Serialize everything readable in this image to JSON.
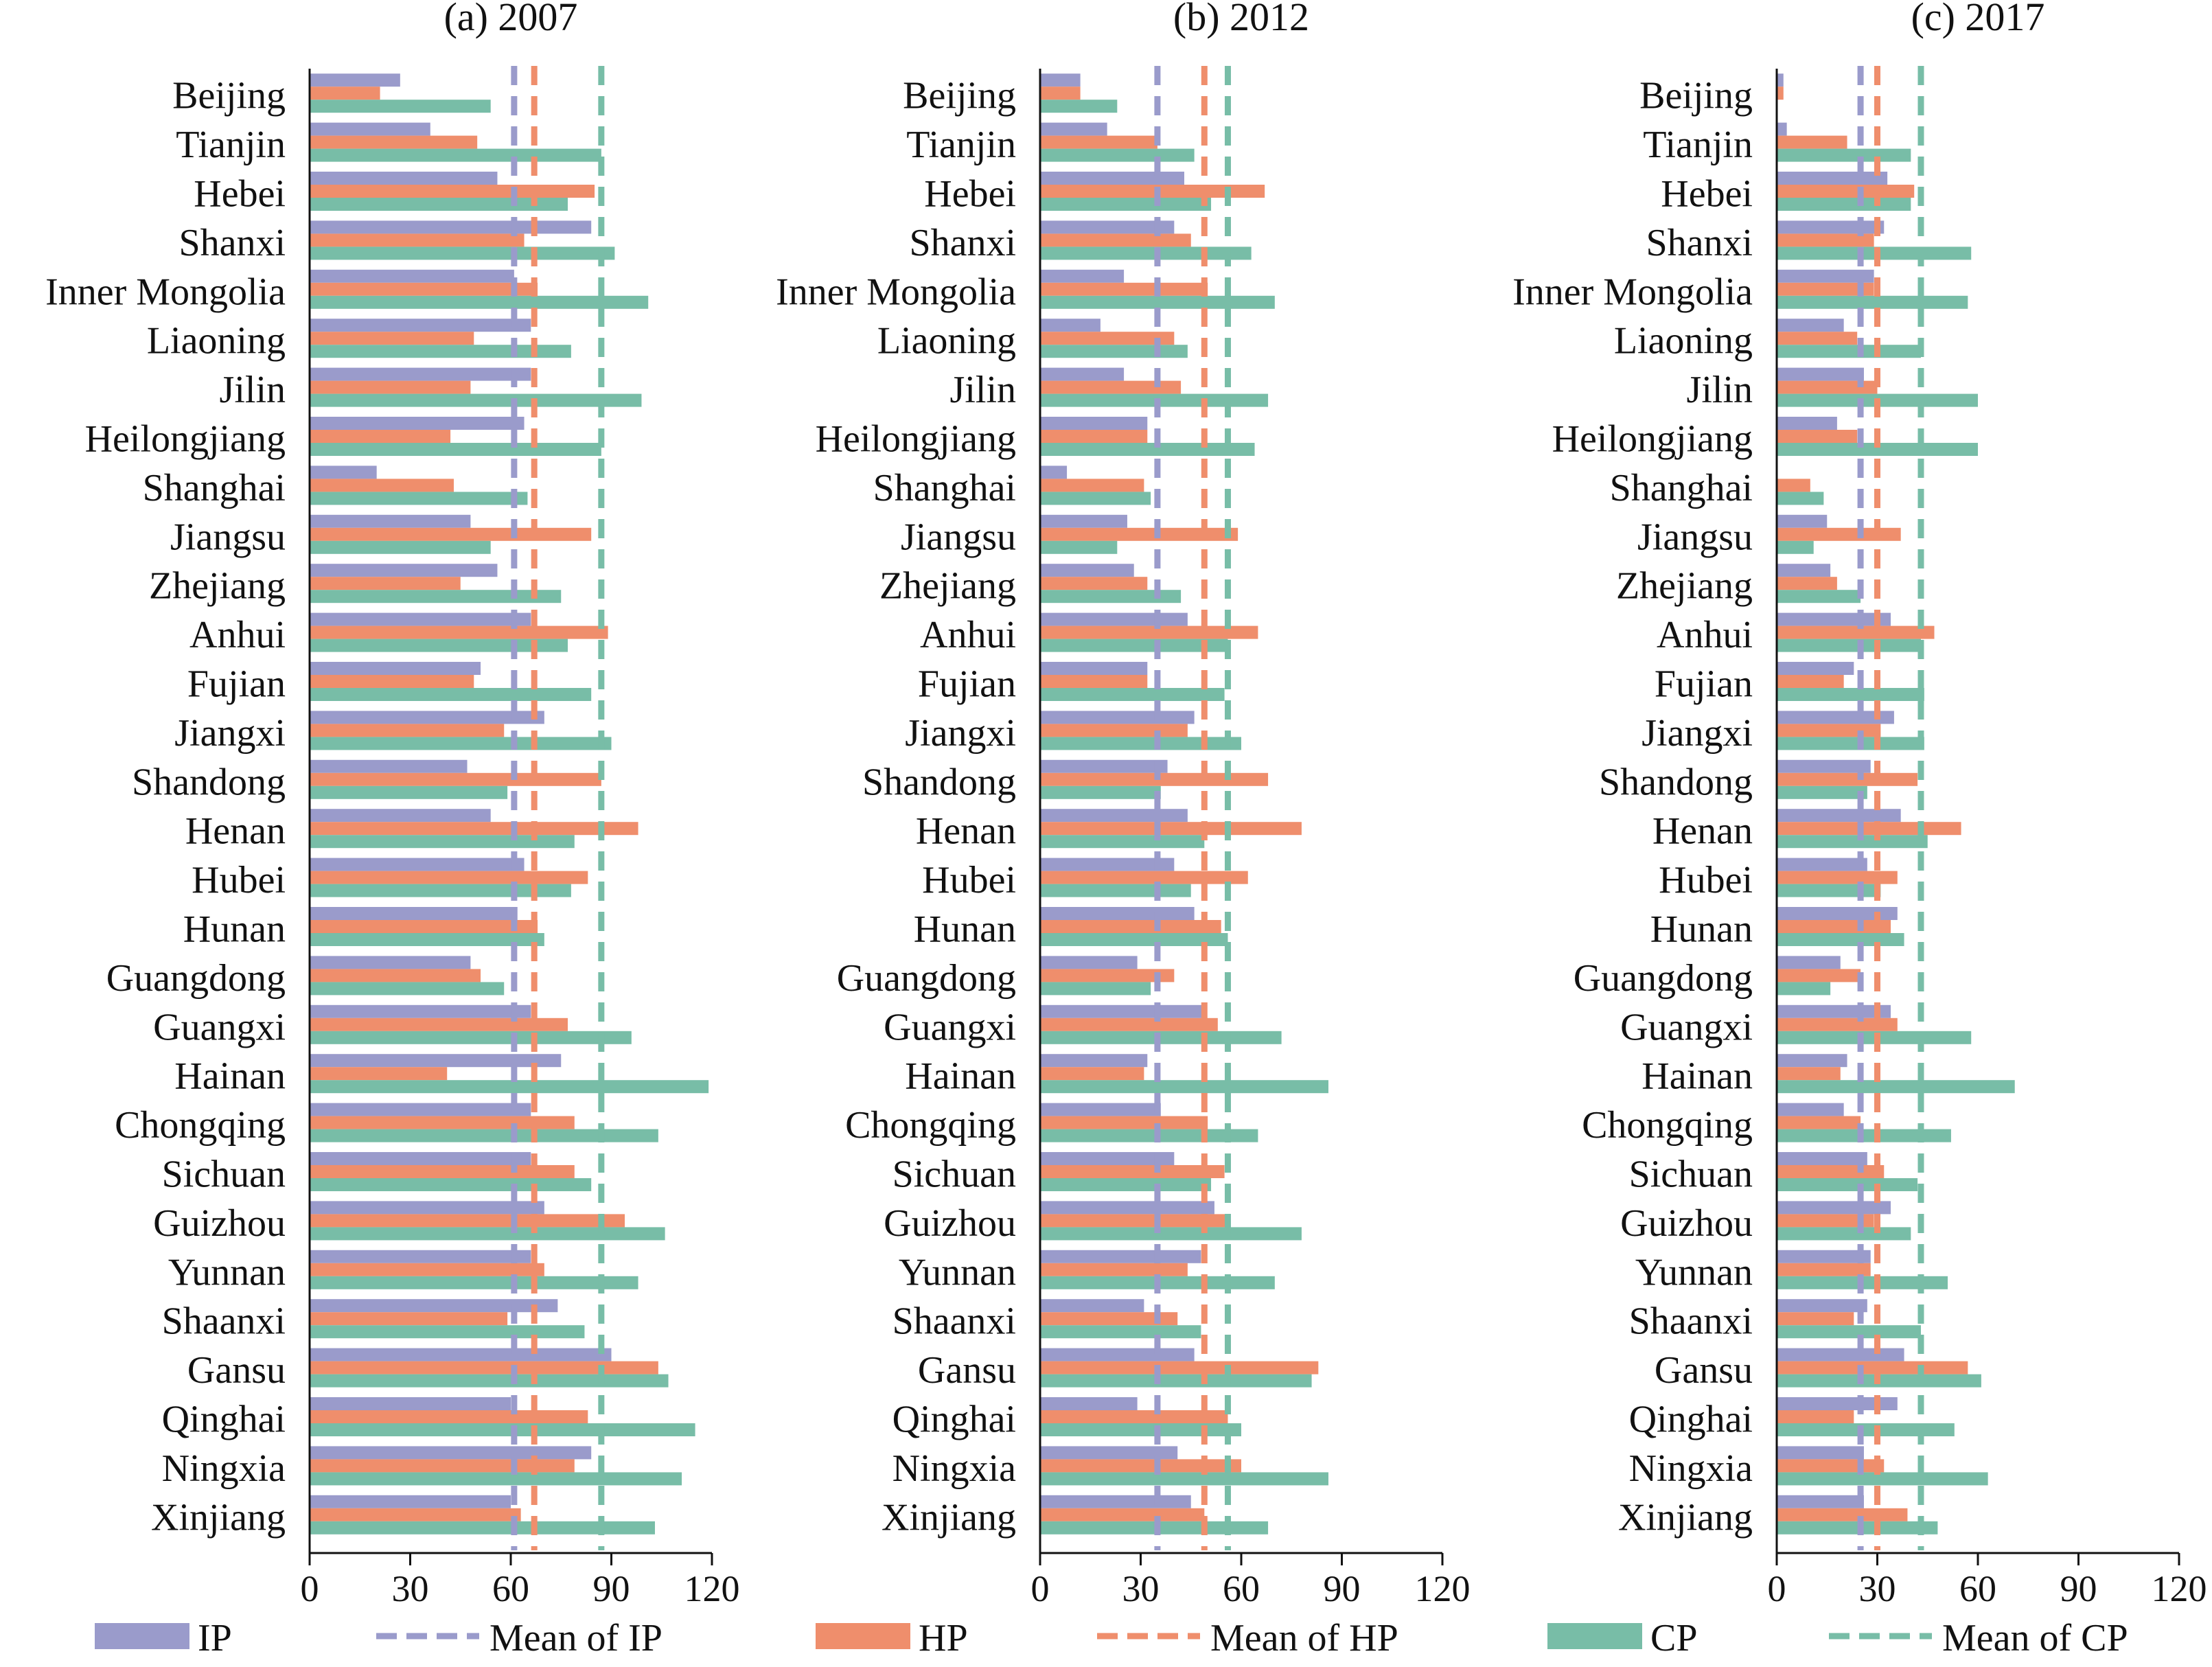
{
  "colors": {
    "IP": "#9a9bcb",
    "HP": "#ef8e6c",
    "CP": "#78bda7",
    "axis": "#111111"
  },
  "legend": [
    {
      "key": "IP",
      "label": "IP",
      "style": "bar"
    },
    {
      "key": "IP",
      "label": "Mean of IP",
      "style": "dashed"
    },
    {
      "key": "HP",
      "label": "HP",
      "style": "bar"
    },
    {
      "key": "HP",
      "label": "Mean of HP",
      "style": "dashed"
    },
    {
      "key": "CP",
      "label": "CP",
      "style": "bar"
    },
    {
      "key": "CP",
      "label": "Mean of CP",
      "style": "dashed"
    }
  ],
  "chart_data": [
    {
      "type": "bar",
      "orientation": "horizontal",
      "title": "(a) 2007",
      "categories": [
        "Beijing",
        "Tianjin",
        "Hebei",
        "Shanxi",
        "Inner Mongolia",
        "Liaoning",
        "Jilin",
        "Heilongjiang",
        "Shanghai",
        "Jiangsu",
        "Zhejiang",
        "Anhui",
        "Fujian",
        "Jiangxi",
        "Shandong",
        "Henan",
        "Hubei",
        "Hunan",
        "Guangdong",
        "Guangxi",
        "Hainan",
        "Chongqing",
        "Sichuan",
        "Guizhou",
        "Yunnan",
        "Shaanxi",
        "Gansu",
        "Qinghai",
        "Ningxia",
        "Xinjiang"
      ],
      "xlim": [
        0,
        120
      ],
      "xticks": [
        "0",
        "30",
        "60",
        "90",
        "120"
      ],
      "series": [
        {
          "name": "IP",
          "values": [
            27,
            36,
            56,
            84,
            61,
            66,
            66,
            64,
            20,
            48,
            56,
            66,
            51,
            70,
            47,
            54,
            64,
            62,
            48,
            66,
            75,
            66,
            66,
            70,
            66,
            74,
            90,
            60,
            84,
            60
          ]
        },
        {
          "name": "HP",
          "values": [
            21,
            50,
            85,
            64,
            68,
            49,
            48,
            42,
            43,
            84,
            45,
            89,
            49,
            58,
            87,
            98,
            83,
            68,
            51,
            77,
            41,
            79,
            79,
            94,
            70,
            59,
            104,
            83,
            79,
            63
          ]
        },
        {
          "name": "CP",
          "values": [
            54,
            87,
            77,
            91,
            101,
            78,
            99,
            87,
            65,
            54,
            75,
            77,
            84,
            90,
            59,
            79,
            78,
            70,
            58,
            96,
            119,
            104,
            84,
            106,
            98,
            82,
            107,
            115,
            111,
            103
          ]
        }
      ],
      "means": {
        "IP": 61,
        "HP": 67,
        "CP": 87
      }
    },
    {
      "type": "bar",
      "orientation": "horizontal",
      "title": "(b) 2012",
      "categories": [
        "Beijing",
        "Tianjin",
        "Hebei",
        "Shanxi",
        "Inner Mongolia",
        "Liaoning",
        "Jilin",
        "Heilongjiang",
        "Shanghai",
        "Jiangsu",
        "Zhejiang",
        "Anhui",
        "Fujian",
        "Jiangxi",
        "Shandong",
        "Henan",
        "Hubei",
        "Hunan",
        "Guangdong",
        "Guangxi",
        "Hainan",
        "Chongqing",
        "Sichuan",
        "Guizhou",
        "Yunnan",
        "Shaanxi",
        "Gansu",
        "Qinghai",
        "Ningxia",
        "Xinjiang"
      ],
      "xlim": [
        0,
        120
      ],
      "xticks": [
        "0",
        "30",
        "60",
        "90",
        "120"
      ],
      "series": [
        {
          "name": "IP",
          "values": [
            12,
            20,
            43,
            40,
            25,
            18,
            25,
            32,
            8,
            26,
            28,
            44,
            32,
            46,
            38,
            44,
            40,
            46,
            29,
            49,
            32,
            36,
            40,
            52,
            48,
            31,
            46,
            29,
            41,
            45
          ]
        },
        {
          "name": "HP",
          "values": [
            12,
            35,
            67,
            45,
            50,
            40,
            42,
            32,
            31,
            59,
            32,
            65,
            32,
            44,
            68,
            78,
            62,
            54,
            40,
            53,
            31,
            50,
            55,
            56,
            44,
            41,
            83,
            56,
            60,
            49
          ]
        },
        {
          "name": "CP",
          "values": [
            23,
            46,
            51,
            63,
            70,
            44,
            68,
            64,
            33,
            23,
            42,
            56,
            55,
            60,
            36,
            49,
            45,
            56,
            33,
            72,
            86,
            65,
            51,
            78,
            70,
            48,
            81,
            60,
            86,
            68
          ]
        }
      ],
      "means": {
        "IP": 35,
        "HP": 49,
        "CP": 56
      }
    },
    {
      "type": "bar",
      "orientation": "horizontal",
      "title": "(c) 2017",
      "categories": [
        "Beijing",
        "Tianjin",
        "Hebei",
        "Shanxi",
        "Inner Mongolia",
        "Liaoning",
        "Jilin",
        "Heilongjiang",
        "Shanghai",
        "Jiangsu",
        "Zhejiang",
        "Anhui",
        "Fujian",
        "Jiangxi",
        "Shandong",
        "Henan",
        "Hubei",
        "Hunan",
        "Guangdong",
        "Guangxi",
        "Hainan",
        "Chongqing",
        "Sichuan",
        "Guizhou",
        "Yunnan",
        "Shaanxi",
        "Gansu",
        "Qinghai",
        "Ningxia",
        "Xinjiang"
      ],
      "xlim": [
        0,
        120
      ],
      "xticks": [
        "0",
        "30",
        "60",
        "90",
        "120"
      ],
      "series": [
        {
          "name": "IP",
          "values": [
            2,
            3,
            33,
            32,
            29,
            20,
            26,
            18,
            0,
            15,
            16,
            34,
            23,
            35,
            28,
            37,
            27,
            36,
            19,
            34,
            21,
            20,
            27,
            34,
            28,
            27,
            38,
            36,
            26,
            26
          ]
        },
        {
          "name": "HP",
          "values": [
            2,
            21,
            41,
            29,
            29,
            24,
            30,
            24,
            10,
            37,
            18,
            47,
            20,
            31,
            42,
            55,
            36,
            34,
            25,
            36,
            19,
            25,
            32,
            29,
            28,
            23,
            57,
            23,
            32,
            39
          ]
        },
        {
          "name": "CP",
          "values": [
            0,
            40,
            40,
            58,
            57,
            43,
            60,
            60,
            14,
            11,
            25,
            43,
            44,
            44,
            27,
            45,
            31,
            38,
            16,
            58,
            71,
            52,
            42,
            40,
            51,
            43,
            61,
            53,
            63,
            48
          ]
        }
      ],
      "means": {
        "IP": 25,
        "HP": 30,
        "CP": 43
      }
    }
  ]
}
